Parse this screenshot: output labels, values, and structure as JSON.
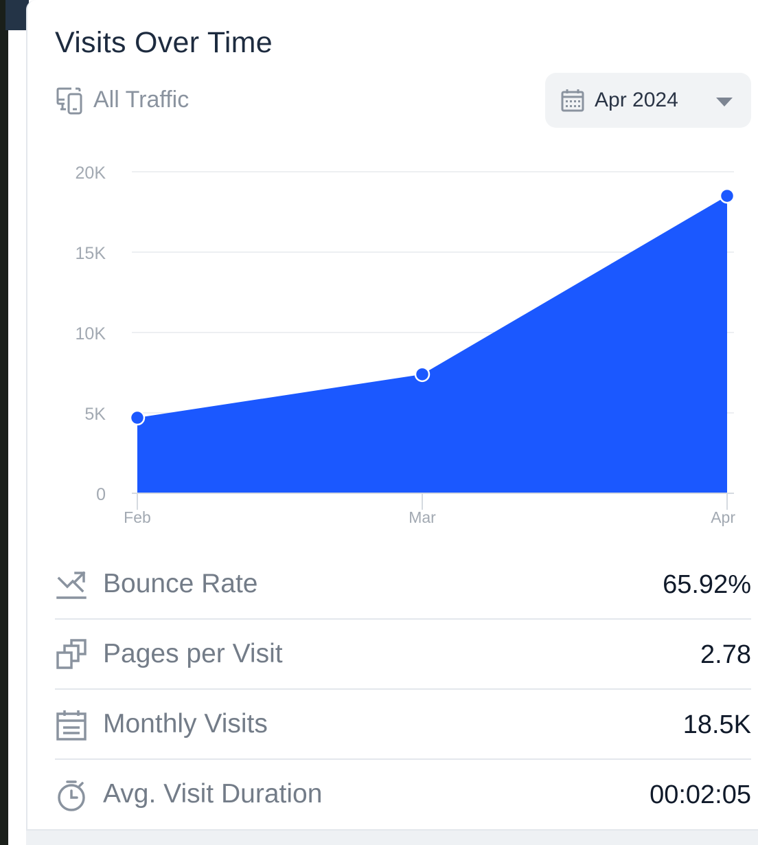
{
  "card": {
    "title": "Visits Over Time",
    "traffic_label": "All Traffic",
    "date_select": {
      "value": "Apr 2024"
    }
  },
  "chart_data": {
    "type": "area",
    "categories": [
      "Feb",
      "Mar",
      "Apr"
    ],
    "values": [
      4700,
      7400,
      18500
    ],
    "y_ticks": [
      "0",
      "5K",
      "10K",
      "15K",
      "20K"
    ],
    "y_tick_values": [
      0,
      5000,
      10000,
      15000,
      20000
    ],
    "ylim": [
      0,
      20000
    ],
    "grid": true,
    "color": "#1b58ff"
  },
  "metrics": [
    {
      "icon": "bounce-icon",
      "label": "Bounce Rate",
      "value": "65.92%"
    },
    {
      "icon": "pages-icon",
      "label": "Pages per Visit",
      "value": "2.78"
    },
    {
      "icon": "calendar-icon",
      "label": "Monthly Visits",
      "value": "18.5K"
    },
    {
      "icon": "stopwatch-icon",
      "label": "Avg. Visit Duration",
      "value": "00:02:05"
    }
  ]
}
